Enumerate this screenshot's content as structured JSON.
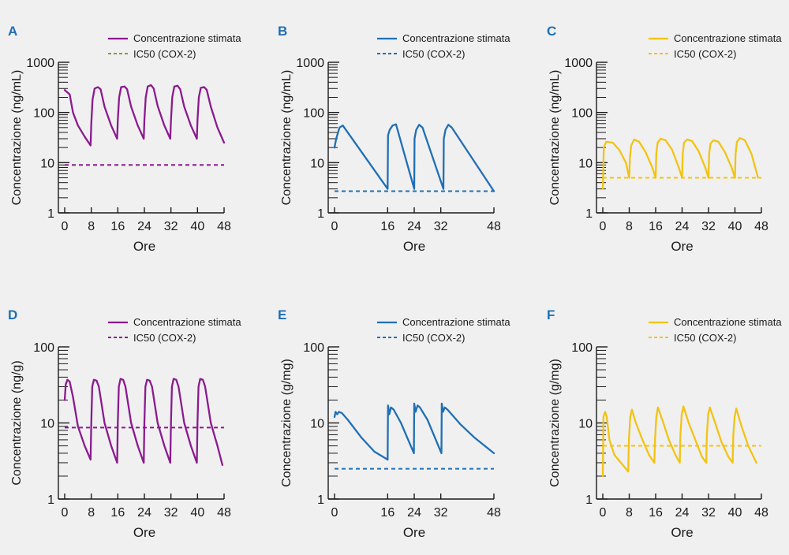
{
  "colors": {
    "purple": "#8b1a8f",
    "blue": "#1f6fb5",
    "yellow": "#f2c314",
    "ic50_legend_A": "#8a9a3c",
    "letter": "#1f6fb5"
  },
  "chart_data": [
    {
      "type": "line",
      "letter": "A",
      "color": "#8b1a8f",
      "legend_ic50_color": "#8a9a3c",
      "ylabel": "Concentrazione (ng/mL)",
      "xlabel": "Ore",
      "yscale": "log",
      "ylim": [
        1,
        1000
      ],
      "yticks": [
        1,
        10,
        100,
        1000
      ],
      "ytick_labels": [
        "1",
        "10",
        "100",
        "1000"
      ],
      "xlim": [
        0,
        48
      ],
      "xticks": [
        0,
        8,
        16,
        24,
        32,
        40,
        48
      ],
      "xtick_labels": [
        "0",
        "8",
        "16",
        "24",
        "32",
        "40",
        "48"
      ],
      "legend": [
        "Concentrazione stimata",
        "IC50 (COX-2)"
      ],
      "series": [
        {
          "name": "Concentrazione stimata",
          "x": [
            0,
            1.5,
            2.5,
            4,
            6,
            7.8,
            8,
            8.4,
            9,
            10,
            10.8,
            12,
            14,
            15.8,
            16,
            16.4,
            17,
            18,
            18.8,
            20,
            22,
            23.8,
            24,
            24.4,
            25,
            26,
            26.8,
            28,
            30,
            31.8,
            32,
            32.4,
            33,
            34,
            34.8,
            36,
            38,
            39.8,
            40,
            40.4,
            41,
            42,
            42.8,
            44,
            46,
            48
          ],
          "y": [
            280,
            230,
            100,
            55,
            33,
            22,
            60,
            180,
            300,
            320,
            290,
            130,
            55,
            30,
            70,
            200,
            320,
            330,
            290,
            130,
            55,
            30,
            70,
            200,
            330,
            350,
            300,
            135,
            55,
            30,
            70,
            200,
            330,
            340,
            290,
            130,
            55,
            30,
            70,
            200,
            310,
            320,
            280,
            130,
            50,
            25
          ]
        },
        {
          "name": "IC50 (COX-2)",
          "x": [
            0,
            48
          ],
          "y": [
            9,
            9
          ]
        }
      ]
    },
    {
      "type": "line",
      "letter": "B",
      "color": "#1f6fb5",
      "legend_ic50_color": "#1f6fb5",
      "ylabel": "Concentrazione (ng/mL)",
      "xlabel": "Ore",
      "yscale": "log",
      "ylim": [
        1,
        1000
      ],
      "yticks": [
        1,
        10,
        100,
        1000
      ],
      "ytick_labels": [
        "1",
        "10",
        "100",
        "1000"
      ],
      "xlim": [
        0,
        48
      ],
      "xticks": [
        0,
        16,
        24,
        32,
        48
      ],
      "xtick_labels": [
        "0",
        "16",
        "24",
        "32",
        "48"
      ],
      "legend": [
        "Concentrazione stimata",
        "IC50 (COX-2)"
      ],
      "series": [
        {
          "name": "Concentrazione stimata",
          "x": [
            0,
            0.5,
            1.5,
            2.5,
            16,
            16.1,
            16.6,
            17.5,
            18.5,
            24,
            24.1,
            24.6,
            25.5,
            26.5,
            32.8,
            32.9,
            33.4,
            34.3,
            35.3,
            48
          ],
          "y": [
            20,
            30,
            50,
            55,
            3,
            35,
            45,
            55,
            58,
            3,
            30,
            45,
            57,
            50,
            3,
            30,
            45,
            57,
            50,
            2.7
          ]
        },
        {
          "name": "IC50 (COX-2)",
          "x": [
            0,
            48
          ],
          "y": [
            2.7,
            2.7
          ]
        }
      ]
    },
    {
      "type": "line",
      "letter": "C",
      "color": "#f2c314",
      "legend_ic50_color": "#f2c314",
      "ylabel": "Concentrazione (ng/mL)",
      "xlabel": "Ore",
      "yscale": "log",
      "ylim": [
        1,
        1000
      ],
      "yticks": [
        1,
        10,
        100,
        1000
      ],
      "ytick_labels": [
        "1",
        "10",
        "100",
        "1000"
      ],
      "xlim": [
        0,
        48
      ],
      "xticks": [
        0,
        8,
        16,
        24,
        32,
        40,
        48
      ],
      "xtick_labels": [
        "0",
        "8",
        "16",
        "24",
        "32",
        "40",
        "48"
      ],
      "legend": [
        "Concentrazione stimata",
        "IC50 (COX-2)"
      ],
      "series": [
        {
          "name": "Concentrazione stimata",
          "x": [
            0,
            0.3,
            1,
            3,
            5,
            7,
            8,
            8.2,
            8.6,
            9.5,
            11,
            13,
            15,
            16,
            16.2,
            16.6,
            17.5,
            19,
            21,
            23,
            24,
            24.2,
            24.6,
            25.5,
            27,
            29,
            31,
            32,
            32.2,
            32.6,
            33.5,
            35,
            37,
            39,
            40,
            40.2,
            40.6,
            41.5,
            43,
            45,
            47
          ],
          "y": [
            3,
            20,
            26,
            25,
            18,
            10,
            5,
            12,
            22,
            29,
            26,
            16,
            8,
            5,
            15,
            25,
            30,
            28,
            18,
            8,
            5,
            15,
            25,
            29,
            27,
            17,
            8,
            5,
            15,
            24,
            28,
            26,
            16,
            8,
            5,
            15,
            26,
            31,
            28,
            15,
            5
          ]
        },
        {
          "name": "IC50 (COX-2)",
          "x": [
            0,
            48
          ],
          "y": [
            5,
            5
          ]
        }
      ]
    },
    {
      "type": "line",
      "letter": "D",
      "color": "#8b1a8f",
      "legend_ic50_color": "#8b1a8f",
      "ylabel": "Concentrazione (ng/g)",
      "xlabel": "Ore",
      "yscale": "log",
      "ylim": [
        1,
        100
      ],
      "yticks": [
        1,
        10,
        100
      ],
      "ytick_labels": [
        "1",
        "10",
        "100"
      ],
      "xlim": [
        0,
        48
      ],
      "xticks": [
        0,
        8,
        16,
        24,
        32,
        40,
        48
      ],
      "xtick_labels": [
        "0",
        "8",
        "16",
        "24",
        "32",
        "40",
        "48"
      ],
      "legend": [
        "Concentrazione stimata",
        "IC50 (COX-2)"
      ],
      "series": [
        {
          "name": "Concentrazione stimata",
          "x": [
            0,
            0.3,
            0.8,
            1.5,
            2.5,
            4,
            6,
            7.8,
            8,
            8.3,
            8.8,
            9.6,
            10.3,
            12,
            14,
            15.8,
            16,
            16.3,
            16.8,
            17.6,
            18.3,
            20,
            22,
            23.8,
            24,
            24.3,
            24.8,
            25.6,
            26.3,
            28,
            30,
            31.8,
            32,
            32.3,
            32.8,
            33.6,
            34.3,
            36,
            38,
            39.8,
            40,
            40.3,
            40.8,
            41.6,
            42.3,
            44,
            46,
            47.5
          ],
          "y": [
            20,
            32,
            37,
            35,
            22,
            9,
            5,
            3.3,
            10,
            30,
            37,
            36,
            30,
            10,
            5,
            3,
            10,
            30,
            38,
            37,
            30,
            10,
            5,
            3,
            10,
            30,
            37,
            36,
            30,
            10,
            5,
            3,
            10,
            30,
            38,
            37,
            30,
            10,
            5,
            3,
            10,
            30,
            38,
            37,
            30,
            10,
            5,
            2.8
          ]
        },
        {
          "name": "IC50 (COX-2)",
          "x": [
            0,
            48
          ],
          "y": [
            8.7,
            8.7
          ]
        }
      ]
    },
    {
      "type": "line",
      "letter": "E",
      "color": "#1f6fb5",
      "legend_ic50_color": "#1f6fb5",
      "ylabel": "Concentrazione (g/mg)",
      "xlabel": "Ore",
      "yscale": "log",
      "ylim": [
        1,
        100
      ],
      "yticks": [
        1,
        10,
        100
      ],
      "ytick_labels": [
        "1",
        "10",
        "100"
      ],
      "xlim": [
        0,
        48
      ],
      "xticks": [
        0,
        16,
        24,
        32,
        48
      ],
      "xtick_labels": [
        "0",
        "16",
        "24",
        "32",
        "48"
      ],
      "legend": [
        "Concentrazione stimata",
        "IC50 (COX-2)"
      ],
      "series": [
        {
          "name": "Concentrazione stimata",
          "x": [
            0,
            0.3,
            0.8,
            1.3,
            2.2,
            4,
            8,
            12,
            16,
            16.1,
            16.5,
            17,
            17.8,
            20,
            23.9,
            24,
            24.4,
            25,
            25.7,
            28,
            32.2,
            32.3,
            32.7,
            33.2,
            34,
            38,
            42,
            48
          ],
          "y": [
            12,
            14,
            13,
            14,
            13.5,
            11,
            6.5,
            4.2,
            3.3,
            17,
            13,
            16,
            15,
            10,
            4,
            18,
            14,
            17,
            16,
            11,
            4,
            18,
            14,
            16,
            15,
            9.5,
            6.5,
            4
          ]
        },
        {
          "name": "IC50 (COX-2)",
          "x": [
            0,
            48
          ],
          "y": [
            2.5,
            2.5
          ]
        }
      ]
    },
    {
      "type": "line",
      "letter": "F",
      "color": "#f2c314",
      "legend_ic50_color": "#f2c314",
      "ylabel": "Concentrazione (g/mg)",
      "xlabel": "Ore",
      "yscale": "log",
      "ylim": [
        1,
        100
      ],
      "yticks": [
        1,
        10,
        100
      ],
      "ytick_labels": [
        "1",
        "10",
        "100"
      ],
      "xlim": [
        0,
        48
      ],
      "xticks": [
        0,
        8,
        16,
        24,
        32,
        40,
        48
      ],
      "xtick_labels": [
        "0",
        "8",
        "16",
        "24",
        "32",
        "40",
        "48"
      ],
      "legend": [
        "Concentrazione stimata",
        "IC50 (COX-2)"
      ],
      "series": [
        {
          "name": "Concentrazione stimata",
          "x": [
            0,
            0.2,
            0.7,
            1.2,
            2,
            3.5,
            5.5,
            7.7,
            7.9,
            8.3,
            8.8,
            10,
            12,
            14,
            15.6,
            15.8,
            16.2,
            16.7,
            18,
            20,
            22,
            23.3,
            23.5,
            23.9,
            24.4,
            26,
            28,
            30,
            31.3,
            31.5,
            31.9,
            32.4,
            34,
            36,
            38,
            39.3,
            39.5,
            39.9,
            40.4,
            42,
            44,
            46.5
          ],
          "y": [
            2,
            12,
            14,
            12,
            6,
            3.8,
            3,
            2.3,
            6,
            12,
            15,
            10,
            6,
            3.8,
            3,
            6,
            12,
            16,
            11,
            6,
            3.8,
            3,
            7,
            13,
            16.5,
            10,
            6,
            3.6,
            3,
            7,
            13,
            16,
            10,
            5.5,
            3.6,
            3,
            7,
            12,
            15.5,
            9,
            5,
            3
          ]
        },
        {
          "name": "IC50 (COX-2)",
          "x": [
            0,
            48
          ],
          "y": [
            5,
            5
          ]
        }
      ]
    }
  ]
}
